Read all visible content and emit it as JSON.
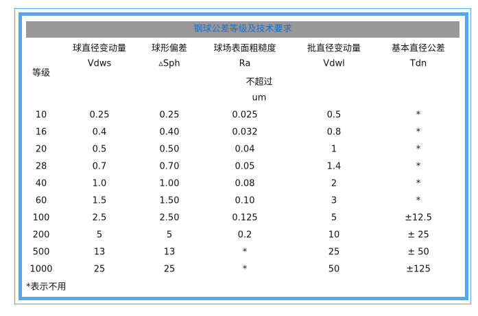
{
  "title": "钢球公差等级及技术要求",
  "headers": {
    "grade": "等级",
    "cols": [
      {
        "name": "球直径变动量",
        "symbol": "Vdws"
      },
      {
        "name": "球形偏差",
        "symbol": "▵Sph"
      },
      {
        "name": "球场表面粗糙度",
        "symbol": "Ra"
      },
      {
        "name": "批直径变动量",
        "symbol": "Vdwl"
      },
      {
        "name": "基本直径公差",
        "symbol": "Tdn"
      }
    ],
    "limit_note": "不超过",
    "unit": "um"
  },
  "rows": [
    [
      "10",
      "0.25",
      "0.25",
      "0.025",
      "0.5",
      "*"
    ],
    [
      "16",
      "0.4",
      "0.40",
      "0.032",
      "0.8",
      "*"
    ],
    [
      "20",
      "0.5",
      "0.50",
      "0.04",
      "1",
      "*"
    ],
    [
      "28",
      "0.7",
      "0.70",
      "0.05",
      "1.4",
      "*"
    ],
    [
      "40",
      "1.0",
      "1.00",
      "0.08",
      "2",
      "*"
    ],
    [
      "60",
      "1.5",
      "1.50",
      "0.10",
      "3",
      "*"
    ],
    [
      "100",
      "2.5",
      "2.50",
      "0.125",
      "5",
      "±12.5"
    ],
    [
      "200",
      "5",
      "5",
      "0.2",
      "10",
      "± 25"
    ],
    [
      "500",
      "13",
      "13",
      "*",
      "25",
      "± 50"
    ],
    [
      "1000",
      "25",
      "25",
      "*",
      "50",
      "±125"
    ]
  ],
  "footnote": "*表示不用",
  "colors": {
    "border": "#5aa6e6",
    "title_bar": "#999999",
    "title_text": "#1a6fd0"
  }
}
